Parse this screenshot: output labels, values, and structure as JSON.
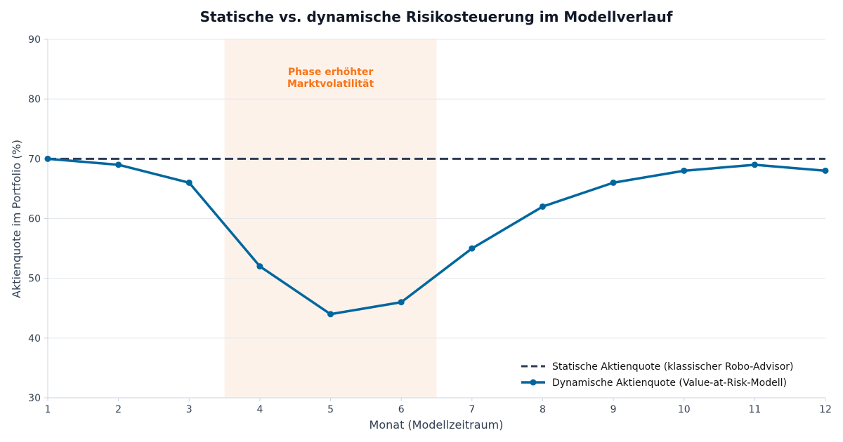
{
  "chart_data": {
    "type": "line",
    "title": "Statische vs. dynamische Risikosteuerung im Modellverlauf",
    "xlabel": "Monat (Modellzeitraum)",
    "ylabel": "Aktienquote im Portfolio (%)",
    "x": [
      1,
      2,
      3,
      4,
      5,
      6,
      7,
      8,
      9,
      10,
      11,
      12
    ],
    "xlim": [
      1,
      12
    ],
    "ylim": [
      30,
      90
    ],
    "yticks": [
      30,
      40,
      50,
      60,
      70,
      80,
      90
    ],
    "grid": "horizontal",
    "legend_position": "bottom-right",
    "series": [
      {
        "name": "Statische Aktienquote (klassischer Robo-Advisor)",
        "values": [
          70,
          70,
          70,
          70,
          70,
          70,
          70,
          70,
          70,
          70,
          70,
          70
        ],
        "color": "#2f3b55",
        "style": "dashed",
        "markers": false
      },
      {
        "name": "Dynamische Aktienquote (Value-at-Risk-Modell)",
        "values": [
          70,
          69,
          66,
          52,
          44,
          46,
          55,
          62,
          66,
          68,
          69,
          68
        ],
        "color": "#00679e",
        "style": "solid",
        "markers": true
      }
    ],
    "highlight": {
      "x_start": 3.5,
      "x_end": 6.5,
      "color": "#fdf2ea",
      "label_lines": [
        "Phase erhöhter",
        "Marktvolatilität"
      ],
      "label_color": "#f97316"
    }
  }
}
